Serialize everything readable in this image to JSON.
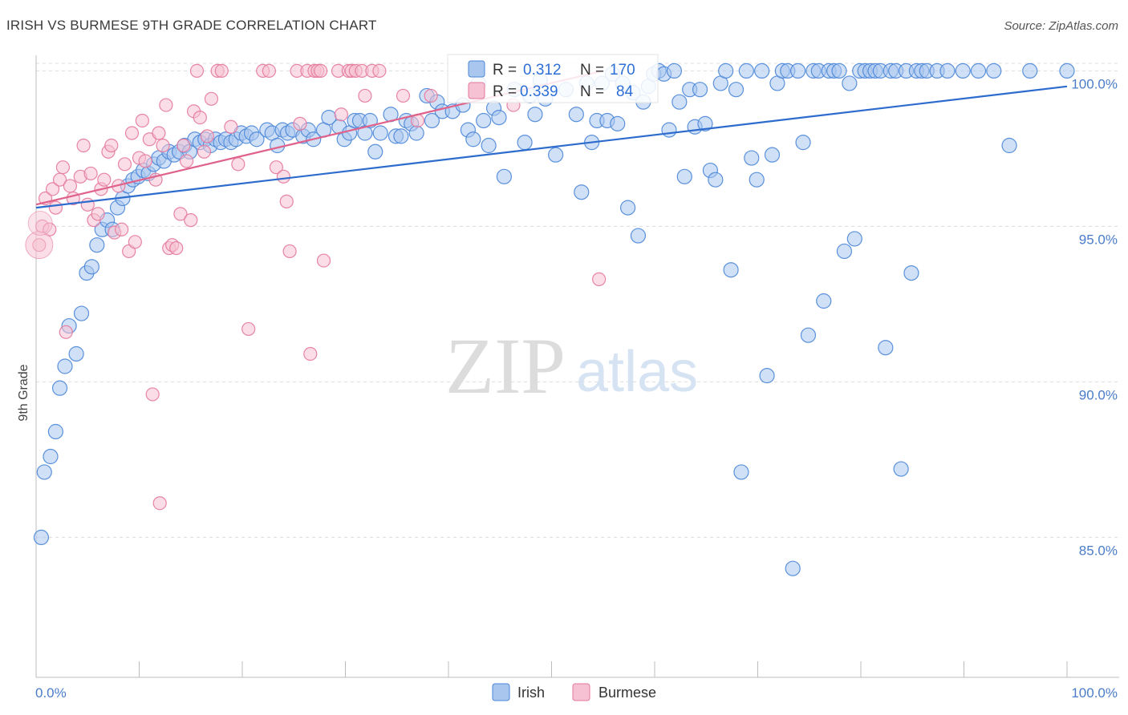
{
  "header": {
    "title": "IRISH VS BURMESE 9TH GRADE CORRELATION CHART",
    "source": "Source: ZipAtlas.com"
  },
  "watermark": {
    "zip": "ZIP",
    "atlas": "atlas"
  },
  "legend": {
    "r_label": "R =",
    "n_label": "N =",
    "irish": {
      "r": "0.312",
      "n": "170"
    },
    "burmese": {
      "r": "0.339",
      "n": "84"
    }
  },
  "colors": {
    "irish_fill": "#a9c6ee",
    "irish_stroke": "#4a86d8",
    "irish_line": "#2d6ccd",
    "burmese_fill": "#f6c1d2",
    "burmese_stroke": "#e4789b",
    "burmese_line": "#e0628a"
  },
  "chart_data": {
    "type": "scatter",
    "title": "IRISH VS BURMESE 9TH GRADE CORRELATION CHART",
    "xlabel": "",
    "ylabel": "9th Grade",
    "xlim": [
      0,
      100
    ],
    "ylim": [
      80.5,
      100.5
    ],
    "x_tick_labels": [
      "0.0%",
      "100.0%"
    ],
    "y_ticks": [
      85,
      90,
      95,
      100
    ],
    "y_tick_labels": [
      "85.0%",
      "90.0%",
      "95.0%",
      "100.0%"
    ],
    "grid": true,
    "legend_position": "bottom",
    "series": [
      {
        "name": "Irish",
        "trend": [
          [
            0,
            95.6
          ],
          [
            100,
            99.5
          ]
        ],
        "points": [
          [
            0.5,
            85.0
          ],
          [
            0.8,
            87.1
          ],
          [
            1.4,
            87.6
          ],
          [
            1.9,
            88.4
          ],
          [
            2.3,
            89.8
          ],
          [
            2.8,
            90.5
          ],
          [
            3.2,
            91.8
          ],
          [
            3.9,
            90.9
          ],
          [
            4.4,
            92.2
          ],
          [
            4.9,
            93.5
          ],
          [
            5.4,
            93.7
          ],
          [
            5.9,
            94.4
          ],
          [
            6.4,
            94.9
          ],
          [
            6.9,
            95.2
          ],
          [
            7.4,
            94.9
          ],
          [
            7.9,
            95.6
          ],
          [
            8.4,
            95.9
          ],
          [
            8.9,
            96.3
          ],
          [
            9.4,
            96.5
          ],
          [
            9.9,
            96.6
          ],
          [
            10.4,
            96.8
          ],
          [
            10.9,
            96.7
          ],
          [
            11.4,
            97.0
          ],
          [
            11.9,
            97.2
          ],
          [
            12.4,
            97.1
          ],
          [
            12.9,
            97.4
          ],
          [
            13.4,
            97.3
          ],
          [
            13.9,
            97.4
          ],
          [
            14.4,
            97.6
          ],
          [
            14.9,
            97.4
          ],
          [
            15.4,
            97.8
          ],
          [
            15.9,
            97.7
          ],
          [
            16.4,
            97.8
          ],
          [
            16.9,
            97.6
          ],
          [
            17.4,
            97.8
          ],
          [
            17.9,
            97.7
          ],
          [
            18.4,
            97.8
          ],
          [
            18.9,
            97.7
          ],
          [
            19.4,
            97.8
          ],
          [
            19.9,
            98.0
          ],
          [
            20.4,
            97.9
          ],
          [
            20.9,
            98.0
          ],
          [
            21.4,
            97.8
          ],
          [
            22.4,
            98.1
          ],
          [
            22.9,
            98.0
          ],
          [
            23.4,
            97.6
          ],
          [
            23.9,
            98.1
          ],
          [
            24.4,
            98.0
          ],
          [
            24.9,
            98.1
          ],
          [
            25.9,
            97.9
          ],
          [
            26.4,
            98.1
          ],
          [
            26.9,
            97.8
          ],
          [
            27.9,
            98.1
          ],
          [
            28.4,
            98.5
          ],
          [
            29.4,
            98.2
          ],
          [
            29.9,
            97.8
          ],
          [
            30.4,
            98.0
          ],
          [
            30.9,
            98.4
          ],
          [
            31.4,
            98.4
          ],
          [
            31.9,
            98.0
          ],
          [
            32.4,
            98.4
          ],
          [
            32.9,
            97.4
          ],
          [
            33.4,
            98.0
          ],
          [
            34.4,
            98.6
          ],
          [
            34.9,
            97.9
          ],
          [
            35.4,
            97.9
          ],
          [
            35.9,
            98.4
          ],
          [
            36.4,
            98.3
          ],
          [
            36.9,
            98.0
          ],
          [
            37.9,
            99.2
          ],
          [
            38.4,
            98.4
          ],
          [
            38.9,
            99.0
          ],
          [
            39.4,
            98.7
          ],
          [
            40.4,
            98.7
          ],
          [
            41.4,
            98.9
          ],
          [
            41.9,
            98.1
          ],
          [
            42.4,
            97.8
          ],
          [
            42.9,
            99.6
          ],
          [
            43.4,
            98.4
          ],
          [
            43.9,
            97.6
          ],
          [
            44.4,
            98.8
          ],
          [
            44.9,
            98.5
          ],
          [
            45.4,
            96.6
          ],
          [
            46.4,
            99.4
          ],
          [
            47.4,
            97.7
          ],
          [
            47.9,
            99.2
          ],
          [
            48.4,
            98.6
          ],
          [
            48.9,
            99.7
          ],
          [
            49.4,
            99.1
          ],
          [
            50.4,
            97.3
          ],
          [
            51.4,
            99.4
          ],
          [
            52.4,
            98.6
          ],
          [
            52.9,
            96.1
          ],
          [
            53.4,
            99.6
          ],
          [
            53.9,
            97.7
          ],
          [
            54.4,
            98.4
          ],
          [
            54.9,
            99.6
          ],
          [
            55.4,
            98.4
          ],
          [
            55.9,
            99.9
          ],
          [
            56.4,
            98.3
          ],
          [
            56.9,
            99.6
          ],
          [
            57.4,
            95.6
          ],
          [
            57.9,
            99.3
          ],
          [
            58.4,
            94.7
          ],
          [
            58.9,
            99.0
          ],
          [
            59.4,
            99.5
          ],
          [
            59.9,
            99.9
          ],
          [
            60.4,
            100.0
          ],
          [
            60.9,
            99.9
          ],
          [
            61.4,
            98.1
          ],
          [
            61.9,
            100.0
          ],
          [
            62.4,
            99.0
          ],
          [
            62.9,
            96.6
          ],
          [
            63.4,
            99.4
          ],
          [
            63.9,
            98.2
          ],
          [
            64.4,
            99.4
          ],
          [
            64.9,
            98.3
          ],
          [
            65.4,
            96.8
          ],
          [
            65.9,
            96.5
          ],
          [
            66.4,
            99.6
          ],
          [
            66.9,
            100.0
          ],
          [
            67.4,
            93.6
          ],
          [
            67.9,
            99.4
          ],
          [
            68.4,
            87.1
          ],
          [
            68.9,
            100.0
          ],
          [
            69.4,
            97.2
          ],
          [
            69.9,
            96.5
          ],
          [
            70.4,
            100.0
          ],
          [
            70.9,
            90.2
          ],
          [
            71.4,
            97.3
          ],
          [
            71.9,
            99.6
          ],
          [
            72.4,
            100.0
          ],
          [
            72.9,
            100.0
          ],
          [
            73.4,
            84.0
          ],
          [
            73.9,
            100.0
          ],
          [
            74.4,
            97.7
          ],
          [
            74.9,
            91.5
          ],
          [
            75.4,
            100.0
          ],
          [
            75.9,
            100.0
          ],
          [
            76.4,
            92.6
          ],
          [
            76.9,
            100.0
          ],
          [
            77.4,
            100.0
          ],
          [
            77.9,
            100.0
          ],
          [
            78.4,
            94.2
          ],
          [
            78.9,
            99.6
          ],
          [
            79.4,
            94.6
          ],
          [
            79.9,
            100.0
          ],
          [
            80.4,
            100.0
          ],
          [
            80.9,
            100.0
          ],
          [
            81.4,
            100.0
          ],
          [
            81.9,
            100.0
          ],
          [
            82.4,
            91.1
          ],
          [
            82.9,
            100.0
          ],
          [
            83.4,
            100.0
          ],
          [
            83.9,
            87.2
          ],
          [
            84.4,
            100.0
          ],
          [
            84.9,
            93.5
          ],
          [
            85.4,
            100.0
          ],
          [
            85.9,
            100.0
          ],
          [
            86.4,
            100.0
          ],
          [
            87.4,
            100.0
          ],
          [
            88.4,
            100.0
          ],
          [
            89.9,
            100.0
          ],
          [
            91.4,
            100.0
          ],
          [
            92.9,
            100.0
          ],
          [
            94.4,
            97.6
          ],
          [
            96.4,
            100.0
          ],
          [
            100.0,
            100.0
          ]
        ]
      },
      {
        "name": "Burmese",
        "trend": [
          [
            0,
            95.7
          ],
          [
            55,
            100.0
          ]
        ],
        "points": [
          [
            0.3,
            94.4
          ],
          [
            0.6,
            95.0
          ],
          [
            0.9,
            95.9
          ],
          [
            1.3,
            94.9
          ],
          [
            1.6,
            96.2
          ],
          [
            1.9,
            95.6
          ],
          [
            2.3,
            96.5
          ],
          [
            2.6,
            96.9
          ],
          [
            2.9,
            91.6
          ],
          [
            3.3,
            96.3
          ],
          [
            3.6,
            95.9
          ],
          [
            4.3,
            96.6
          ],
          [
            4.6,
            97.6
          ],
          [
            5.0,
            95.7
          ],
          [
            5.3,
            96.7
          ],
          [
            5.6,
            95.2
          ],
          [
            6.0,
            95.4
          ],
          [
            6.3,
            96.2
          ],
          [
            6.6,
            96.5
          ],
          [
            7.0,
            97.4
          ],
          [
            7.3,
            97.6
          ],
          [
            7.6,
            94.8
          ],
          [
            8.0,
            96.3
          ],
          [
            8.3,
            94.9
          ],
          [
            8.6,
            97.0
          ],
          [
            9.0,
            94.2
          ],
          [
            9.3,
            98.0
          ],
          [
            9.6,
            94.5
          ],
          [
            10.0,
            97.2
          ],
          [
            10.3,
            98.4
          ],
          [
            10.6,
            97.1
          ],
          [
            11.0,
            97.8
          ],
          [
            11.3,
            89.6
          ],
          [
            11.6,
            96.5
          ],
          [
            11.9,
            98.0
          ],
          [
            12.0,
            86.1
          ],
          [
            12.3,
            97.6
          ],
          [
            12.6,
            98.9
          ],
          [
            12.9,
            94.3
          ],
          [
            13.2,
            94.4
          ],
          [
            13.6,
            94.3
          ],
          [
            14.0,
            95.4
          ],
          [
            14.3,
            97.6
          ],
          [
            14.6,
            97.1
          ],
          [
            15.0,
            95.2
          ],
          [
            15.3,
            98.7
          ],
          [
            15.6,
            100.0
          ],
          [
            15.9,
            98.5
          ],
          [
            16.3,
            97.4
          ],
          [
            16.6,
            97.9
          ],
          [
            17.0,
            99.1
          ],
          [
            17.6,
            100.0
          ],
          [
            18.0,
            100.0
          ],
          [
            18.9,
            98.2
          ],
          [
            19.6,
            97.0
          ],
          [
            20.6,
            91.7
          ],
          [
            22.0,
            100.0
          ],
          [
            22.6,
            100.0
          ],
          [
            23.3,
            96.9
          ],
          [
            24.0,
            96.6
          ],
          [
            24.3,
            95.8
          ],
          [
            24.6,
            94.2
          ],
          [
            25.3,
            100.0
          ],
          [
            25.6,
            98.3
          ],
          [
            26.3,
            100.0
          ],
          [
            26.6,
            90.9
          ],
          [
            27.0,
            100.0
          ],
          [
            27.3,
            100.0
          ],
          [
            27.6,
            100.0
          ],
          [
            27.9,
            93.9
          ],
          [
            29.3,
            100.0
          ],
          [
            29.6,
            98.6
          ],
          [
            30.3,
            100.0
          ],
          [
            30.6,
            100.0
          ],
          [
            31.0,
            100.0
          ],
          [
            31.6,
            100.0
          ],
          [
            31.9,
            99.2
          ],
          [
            32.6,
            100.0
          ],
          [
            33.3,
            100.0
          ],
          [
            35.6,
            99.2
          ],
          [
            37.0,
            98.4
          ],
          [
            38.3,
            99.2
          ],
          [
            46.3,
            98.9
          ],
          [
            54.6,
            93.3
          ]
        ]
      }
    ]
  },
  "bottom_legend": {
    "irish": "Irish",
    "burmese": "Burmese"
  }
}
